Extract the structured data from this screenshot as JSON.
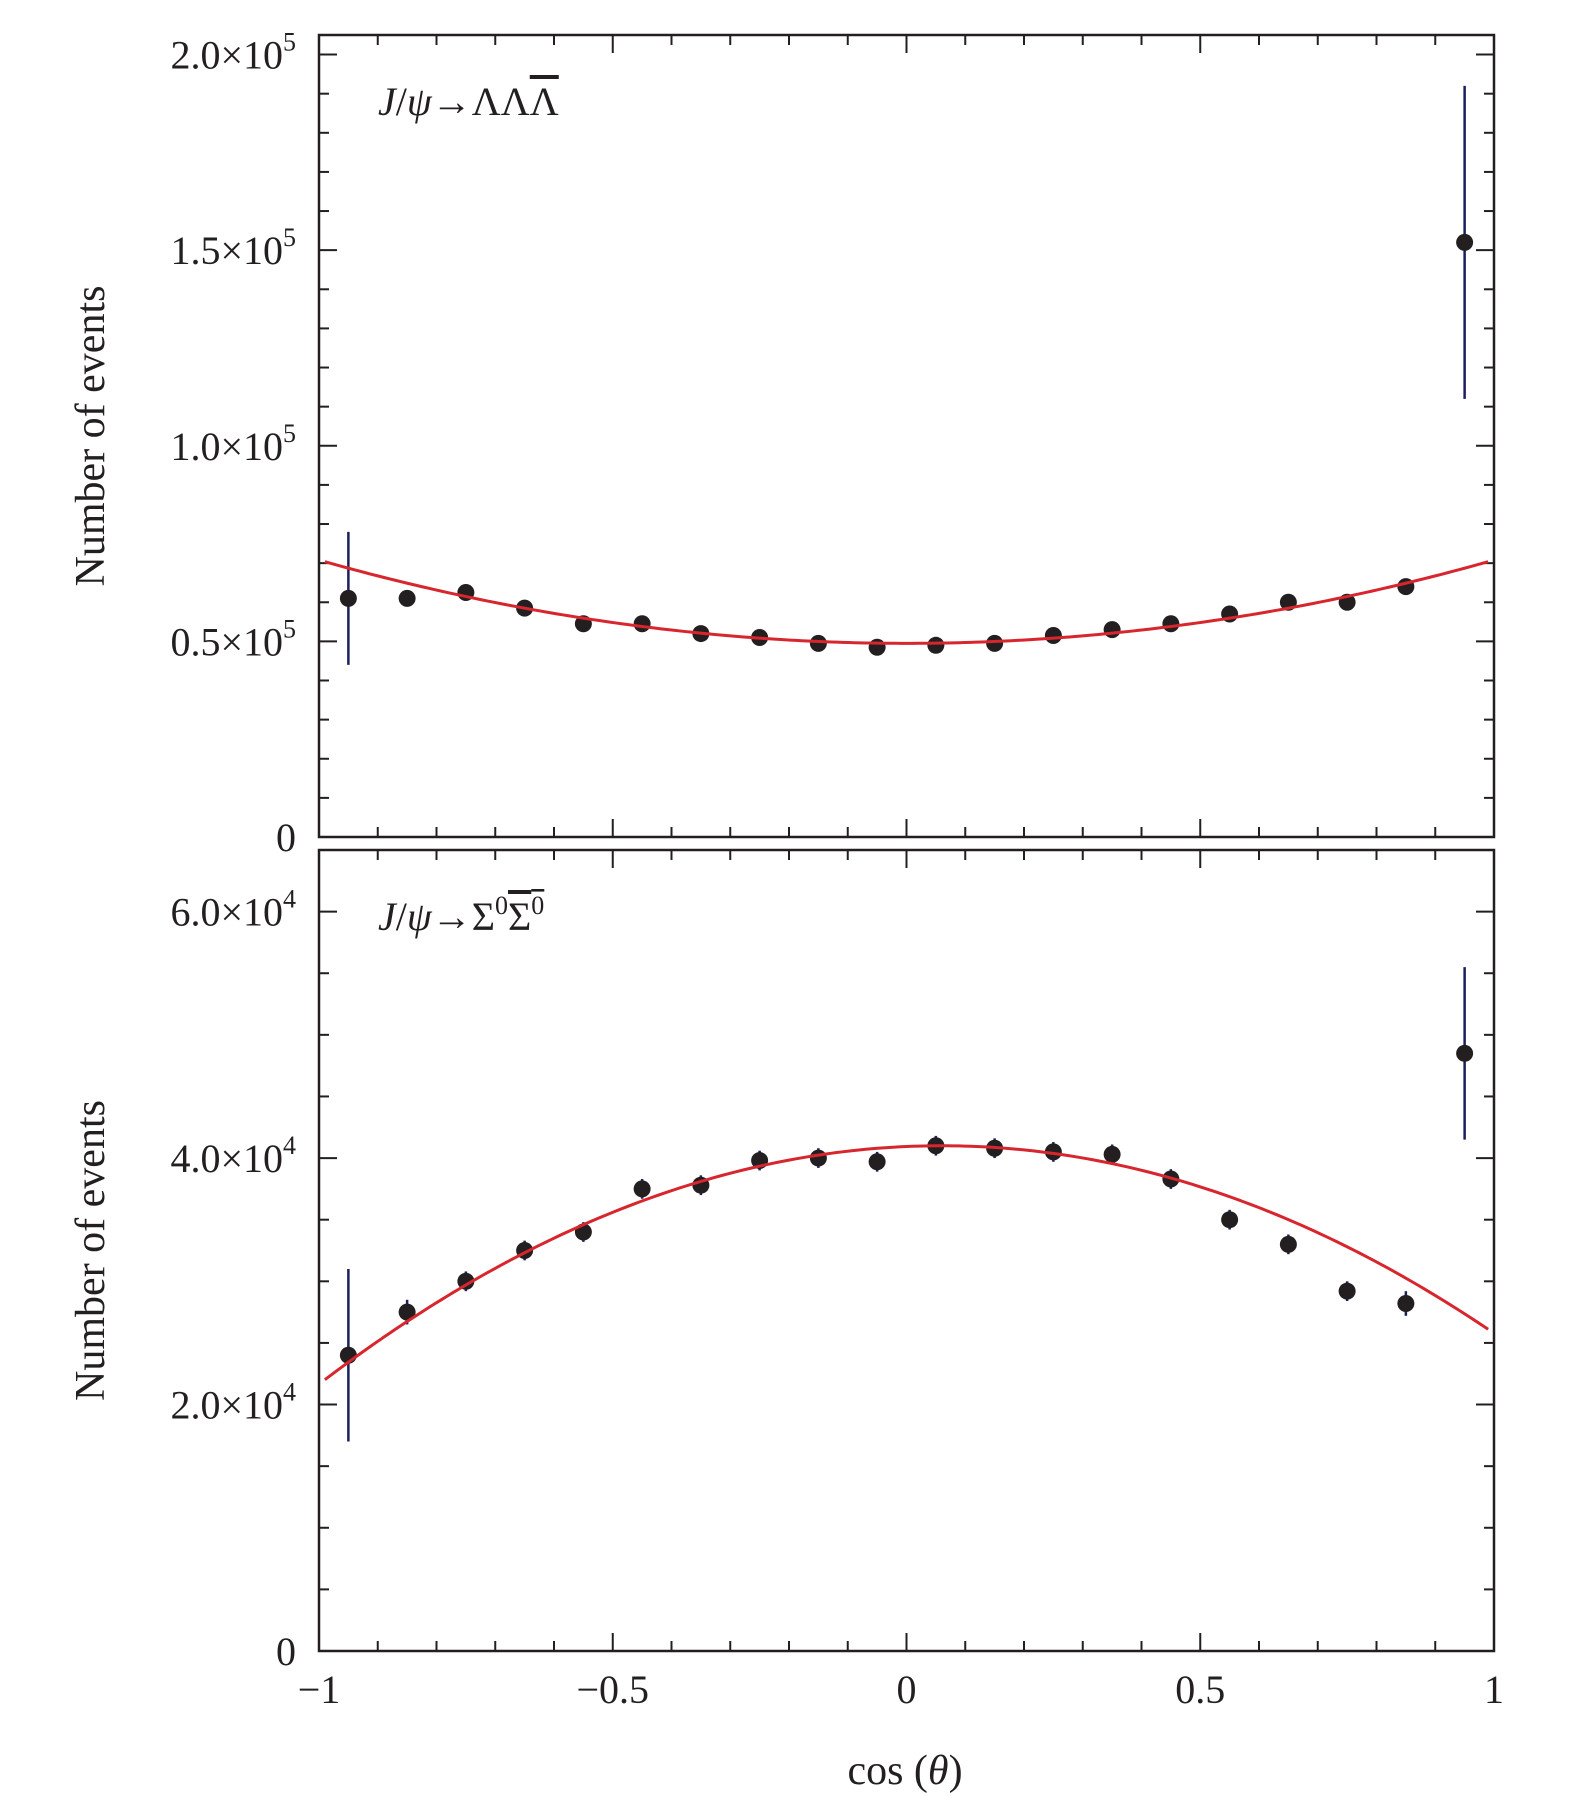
{
  "chart_data": [
    {
      "type": "scatter",
      "annotation": {
        "base": "J/ψ→ΛΛ",
        "overbar_char": "Λ"
      },
      "ylabel": "Number of events",
      "xlim": [
        -1,
        1
      ],
      "ylim": [
        0,
        205000
      ],
      "ytick_labels": [
        {
          "value": 0,
          "mantissa": "0",
          "exp": ""
        },
        {
          "value": 50000,
          "mantissa": "0.5×10",
          "exp": "5"
        },
        {
          "value": 100000,
          "mantissa": "1.0×10",
          "exp": "5"
        },
        {
          "value": 150000,
          "mantissa": "1.5×10",
          "exp": "5"
        },
        {
          "value": 200000,
          "mantissa": "2.0×10",
          "exp": "5"
        }
      ],
      "minor_y_step": 10000,
      "series": [
        {
          "kind": "points",
          "x": [
            -0.95,
            -0.85,
            -0.75,
            -0.65,
            -0.55,
            -0.45,
            -0.35,
            -0.25,
            -0.15,
            -0.05,
            0.05,
            0.15,
            0.25,
            0.35,
            0.45,
            0.55,
            0.65,
            0.75,
            0.85,
            0.95
          ],
          "y": [
            61000,
            61000,
            62500,
            58500,
            54500,
            54500,
            52000,
            51000,
            49500,
            48500,
            49000,
            49500,
            51500,
            53000,
            54500,
            57000,
            60000,
            60000,
            64000,
            152000
          ],
          "yerr": [
            17000,
            1000,
            1000,
            1000,
            1000,
            1000,
            1000,
            1000,
            1000,
            1000,
            1000,
            1000,
            1000,
            1000,
            1000,
            1000,
            1000,
            1000,
            1000,
            40000
          ]
        },
        {
          "kind": "fit",
          "form": "a*(1+b*x^2)",
          "a": 49500,
          "b": 0.43
        }
      ]
    },
    {
      "type": "scatter",
      "annotation": {
        "base": "J/ψ→Σ",
        "sup1": "0",
        "overbar_char": "Σ",
        "sup2": "0"
      },
      "xlabel": "cos (θ)",
      "ylabel": "Number of events",
      "xlim": [
        -1,
        1
      ],
      "ylim": [
        0,
        65000
      ],
      "xtick_labels": [
        {
          "value": -1,
          "label": "−1"
        },
        {
          "value": -0.5,
          "label": "−0.5"
        },
        {
          "value": 0,
          "label": "0"
        },
        {
          "value": 0.5,
          "label": "0.5"
        },
        {
          "value": 1,
          "label": "1"
        }
      ],
      "ytick_labels": [
        {
          "value": 0,
          "mantissa": "0",
          "exp": ""
        },
        {
          "value": 20000,
          "mantissa": "2.0×10",
          "exp": "4"
        },
        {
          "value": 40000,
          "mantissa": "4.0×10",
          "exp": "4"
        },
        {
          "value": 60000,
          "mantissa": "6.0×10",
          "exp": "4"
        }
      ],
      "minor_y_step": 5000,
      "series": [
        {
          "kind": "points",
          "x": [
            -0.95,
            -0.85,
            -0.75,
            -0.65,
            -0.55,
            -0.45,
            -0.35,
            -0.25,
            -0.15,
            -0.05,
            0.05,
            0.15,
            0.25,
            0.35,
            0.45,
            0.55,
            0.65,
            0.75,
            0.85,
            0.95
          ],
          "y": [
            24000,
            27500,
            30000,
            32500,
            34000,
            37500,
            37800,
            39800,
            40000,
            39700,
            41000,
            40800,
            40500,
            40300,
            38300,
            35000,
            33000,
            29200,
            28200,
            48500
          ],
          "yerr": [
            7000,
            1000,
            800,
            800,
            800,
            800,
            800,
            800,
            800,
            800,
            800,
            800,
            800,
            800,
            800,
            800,
            800,
            800,
            1000,
            7000
          ]
        },
        {
          "kind": "fit",
          "form": "a*(1+b*(x-c)^2)",
          "a": 41000,
          "b": -0.42,
          "c": 0.06
        }
      ]
    }
  ],
  "colors": {
    "points": "#231f20",
    "error_bars": "#1b1f5c",
    "fit": "#d7262e",
    "axes": "#231f20"
  }
}
